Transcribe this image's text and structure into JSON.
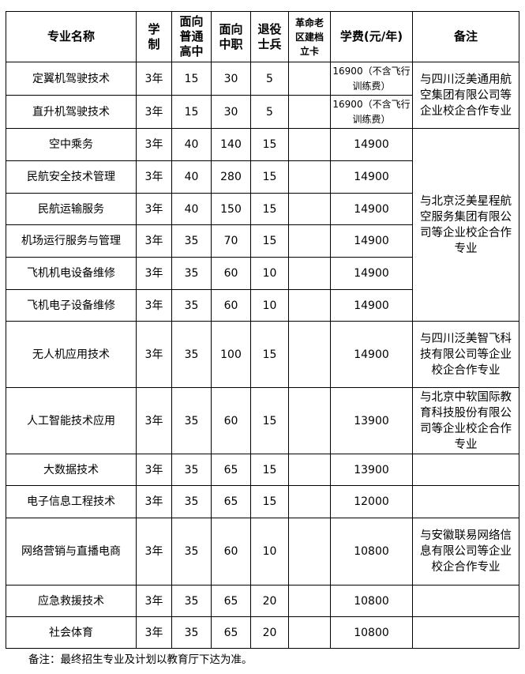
{
  "headers": [
    "专业名称",
    "学制",
    "面向普通高中",
    "面向中职",
    "退役士兵",
    "革命老区建档立卡",
    "学费(元/年)",
    "备注"
  ],
  "header_lines": {
    "xz": [
      "学",
      "制"
    ],
    "pt": [
      "面向",
      "普通",
      "高中"
    ],
    "zz": [
      "面向",
      "中职"
    ],
    "ty": [
      "退役",
      "士兵"
    ],
    "gm": [
      "革命老",
      "区建档",
      "立卡"
    ]
  },
  "rows": [
    {
      "name": "定翼机驾驶技术",
      "years": "3年",
      "gz": "15",
      "zz": "30",
      "ty": "5",
      "gm": "",
      "fee": "16900（不含飞行训练费）"
    },
    {
      "name": "直升机驾驶技术",
      "years": "3年",
      "gz": "15",
      "zz": "30",
      "ty": "5",
      "gm": "",
      "fee": "16900（不含飞行训练费）"
    },
    {
      "name": "空中乘务",
      "years": "3年",
      "gz": "40",
      "zz": "140",
      "ty": "15",
      "gm": "",
      "fee": "14900"
    },
    {
      "name": "民航安全技术管理",
      "years": "3年",
      "gz": "40",
      "zz": "280",
      "ty": "15",
      "gm": "",
      "fee": "14900"
    },
    {
      "name": "民航运输服务",
      "years": "3年",
      "gz": "40",
      "zz": "150",
      "ty": "15",
      "gm": "",
      "fee": "14900"
    },
    {
      "name": "机场运行服务与管理",
      "years": "3年",
      "gz": "35",
      "zz": "70",
      "ty": "15",
      "gm": "",
      "fee": "14900"
    },
    {
      "name": "飞机机电设备维修",
      "years": "3年",
      "gz": "35",
      "zz": "60",
      "ty": "10",
      "gm": "",
      "fee": "14900"
    },
    {
      "name": "飞机电子设备维修",
      "years": "3年",
      "gz": "35",
      "zz": "60",
      "ty": "10",
      "gm": "",
      "fee": "14900"
    },
    {
      "name": "无人机应用技术",
      "years": "3年",
      "gz": "35",
      "zz": "100",
      "ty": "15",
      "gm": "",
      "fee": "14900"
    },
    {
      "name": "人工智能技术应用",
      "years": "3年",
      "gz": "35",
      "zz": "60",
      "ty": "15",
      "gm": "",
      "fee": "13900"
    },
    {
      "name": "大数据技术",
      "years": "3年",
      "gz": "35",
      "zz": "65",
      "ty": "15",
      "gm": "",
      "fee": "13900"
    },
    {
      "name": "电子信息工程技术",
      "years": "3年",
      "gz": "35",
      "zz": "65",
      "ty": "15",
      "gm": "",
      "fee": "12000"
    },
    {
      "name": "网络营销与直播电商",
      "years": "3年",
      "gz": "35",
      "zz": "60",
      "ty": "10",
      "gm": "",
      "fee": "10800"
    },
    {
      "name": "应急救援技术",
      "years": "3年",
      "gz": "35",
      "zz": "65",
      "ty": "20",
      "gm": "",
      "fee": "10800"
    },
    {
      "name": "社会体育",
      "years": "3年",
      "gz": "35",
      "zz": "65",
      "ty": "20",
      "gm": "",
      "fee": "10800"
    }
  ],
  "remarks": [
    "与四川泛美通用航空集团有限公司等企业校企合作专业",
    "与北京泛美星程航空服务集团有限公司等企业校企合作专业",
    "与四川泛美智飞科技有限公司等企业校企合作专业",
    "与北京中软国际教育科技股份有限公司等企业校企合作专业",
    "",
    "",
    "与安徽联易网络信息有限公司等企业校企合作专业",
    "",
    ""
  ],
  "footnote": "备注：最终招生专业及计划以教育厅下达为准。"
}
